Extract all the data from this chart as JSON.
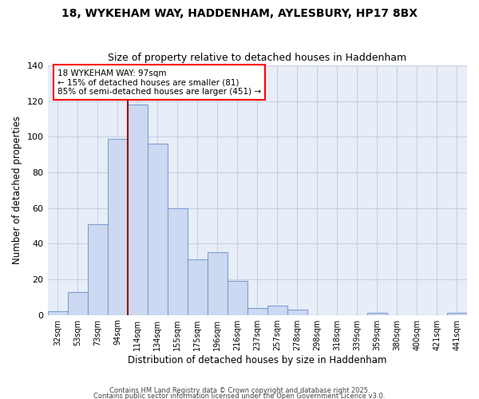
{
  "title": "18, WYKEHAM WAY, HADDENHAM, AYLESBURY, HP17 8BX",
  "subtitle": "Size of property relative to detached houses in Haddenham",
  "xlabel": "Distribution of detached houses by size in Haddenham",
  "ylabel": "Number of detached properties",
  "bar_color": "#ccd9f0",
  "bar_edge_color": "#7b9fd4",
  "background_color": "#e8eef8",
  "grid_color": "#c8d0e0",
  "bin_labels": [
    "32sqm",
    "53sqm",
    "73sqm",
    "94sqm",
    "114sqm",
    "134sqm",
    "155sqm",
    "175sqm",
    "196sqm",
    "216sqm",
    "237sqm",
    "257sqm",
    "278sqm",
    "298sqm",
    "318sqm",
    "339sqm",
    "359sqm",
    "380sqm",
    "400sqm",
    "421sqm",
    "441sqm"
  ],
  "bar_values": [
    2,
    13,
    51,
    99,
    118,
    96,
    60,
    31,
    35,
    19,
    4,
    5,
    3,
    0,
    0,
    0,
    1,
    0,
    0,
    0,
    1
  ],
  "ylim": [
    0,
    140
  ],
  "yticks": [
    0,
    20,
    40,
    60,
    80,
    100,
    120,
    140
  ],
  "property_line_label": "18 WYKEHAM WAY: 97sqm",
  "annotation_text_line1": "← 15% of detached houses are smaller (81)",
  "annotation_text_line2": "85% of semi-detached houses are larger (451) →",
  "footer_line1": "Contains HM Land Registry data © Crown copyright and database right 2025.",
  "footer_line2": "Contains public sector information licensed under the Open Government Licence v3.0."
}
